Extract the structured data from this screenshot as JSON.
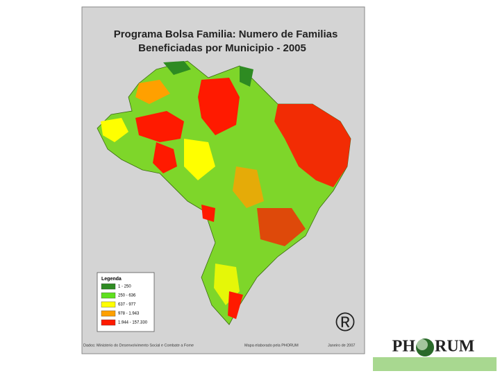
{
  "title": {
    "line1": "Programa Bolsa Familia: Numero de Familias",
    "line2": "Beneficiadas por Municipio - 2005"
  },
  "legend": {
    "title": "Legenda",
    "items": [
      {
        "label": "1 - 250",
        "color": "#2e8b22"
      },
      {
        "label": "250 - 636",
        "color": "#5fe01e"
      },
      {
        "label": "637 - 977",
        "color": "#ffff00"
      },
      {
        "label": "978 - 1.943",
        "color": "#ffa000"
      },
      {
        "label": "1.944 - 157.330",
        "color": "#ff1a00"
      }
    ]
  },
  "footer": {
    "source": "Dados: Ministerio do Desenvolvimento Social e Combate a Fome",
    "credit": "Mapa elaborado pela PHORUM",
    "date": "Janeiro de 2007"
  },
  "mark": "®",
  "logo": {
    "left": "PH",
    "right": "RUM"
  }
}
